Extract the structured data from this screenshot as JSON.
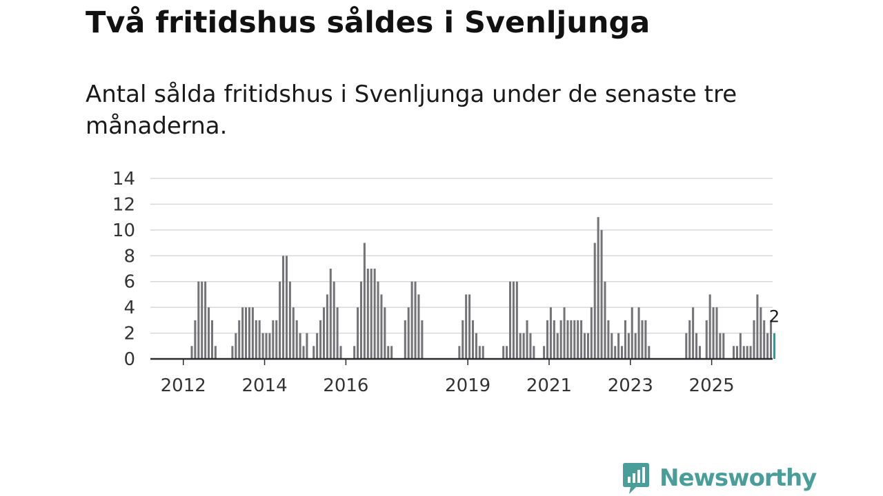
{
  "title": "Två fritidshus såldes i Svenljunga",
  "subtitle": "Antal sålda fritidshus i Svenljunga under de senaste tre månaderna.",
  "brand": {
    "name": "Newsworthy",
    "color": "#4a9e9a",
    "icon": "newsworthy-bar-chart-bubble-icon"
  },
  "colors": {
    "bar": "#737378",
    "highlight": "#1aa39a",
    "grid": "#d8d8d8",
    "axis": "#2a2a2a"
  },
  "chart_data": {
    "type": "bar",
    "title": "Två fritidshus såldes i Svenljunga",
    "xlabel": "",
    "ylabel": "",
    "ylim": [
      0,
      14
    ],
    "yticks": [
      "0",
      "2",
      "4",
      "6",
      "8",
      "10",
      "12",
      "14"
    ],
    "x_start": {
      "year": 2011,
      "month": 3
    },
    "x_min": 2011.19,
    "x_max": 2026.5,
    "xticks": [
      {
        "label": "2012",
        "x": 2012.0
      },
      {
        "label": "2014",
        "x": 2014.0
      },
      {
        "label": "2016",
        "x": 2016.0
      },
      {
        "label": "2019",
        "x": 2019.0
      },
      {
        "label": "2021",
        "x": 2021.0
      },
      {
        "label": "2023",
        "x": 2023.0
      },
      {
        "label": "2025",
        "x": 2025.0
      }
    ],
    "values": [
      0,
      0,
      0,
      0,
      0,
      0,
      0,
      0,
      0,
      0,
      0,
      0,
      1,
      3,
      6,
      6,
      6,
      4,
      3,
      1,
      0,
      0,
      0,
      0,
      1,
      2,
      3,
      4,
      4,
      4,
      4,
      3,
      3,
      2,
      2,
      2,
      3,
      3,
      6,
      8,
      8,
      6,
      4,
      3,
      2,
      1,
      2,
      0,
      1,
      2,
      3,
      4,
      5,
      7,
      6,
      4,
      1,
      0,
      0,
      0,
      1,
      4,
      6,
      9,
      7,
      7,
      7,
      6,
      5,
      4,
      1,
      1,
      0,
      0,
      0,
      3,
      4,
      6,
      6,
      5,
      3,
      0,
      0,
      0,
      0,
      0,
      0,
      0,
      0,
      0,
      0,
      1,
      3,
      5,
      5,
      3,
      2,
      1,
      1,
      0,
      0,
      0,
      0,
      0,
      1,
      1,
      6,
      6,
      6,
      2,
      2,
      3,
      2,
      1,
      0,
      0,
      1,
      3,
      4,
      3,
      2,
      3,
      4,
      3,
      3,
      3,
      3,
      3,
      2,
      2,
      4,
      9,
      11,
      10,
      6,
      3,
      2,
      1,
      2,
      1,
      3,
      2,
      4,
      2,
      4,
      3,
      3,
      1,
      0,
      0,
      0,
      0,
      0,
      0,
      0,
      0,
      0,
      0,
      2,
      3,
      4,
      2,
      1,
      0,
      3,
      5,
      4,
      4,
      2,
      2,
      0,
      0,
      1,
      1,
      2,
      1,
      1,
      1,
      3,
      5,
      4,
      3,
      2,
      3,
      2
    ],
    "highlight": {
      "value": 2,
      "label": "2"
    }
  }
}
